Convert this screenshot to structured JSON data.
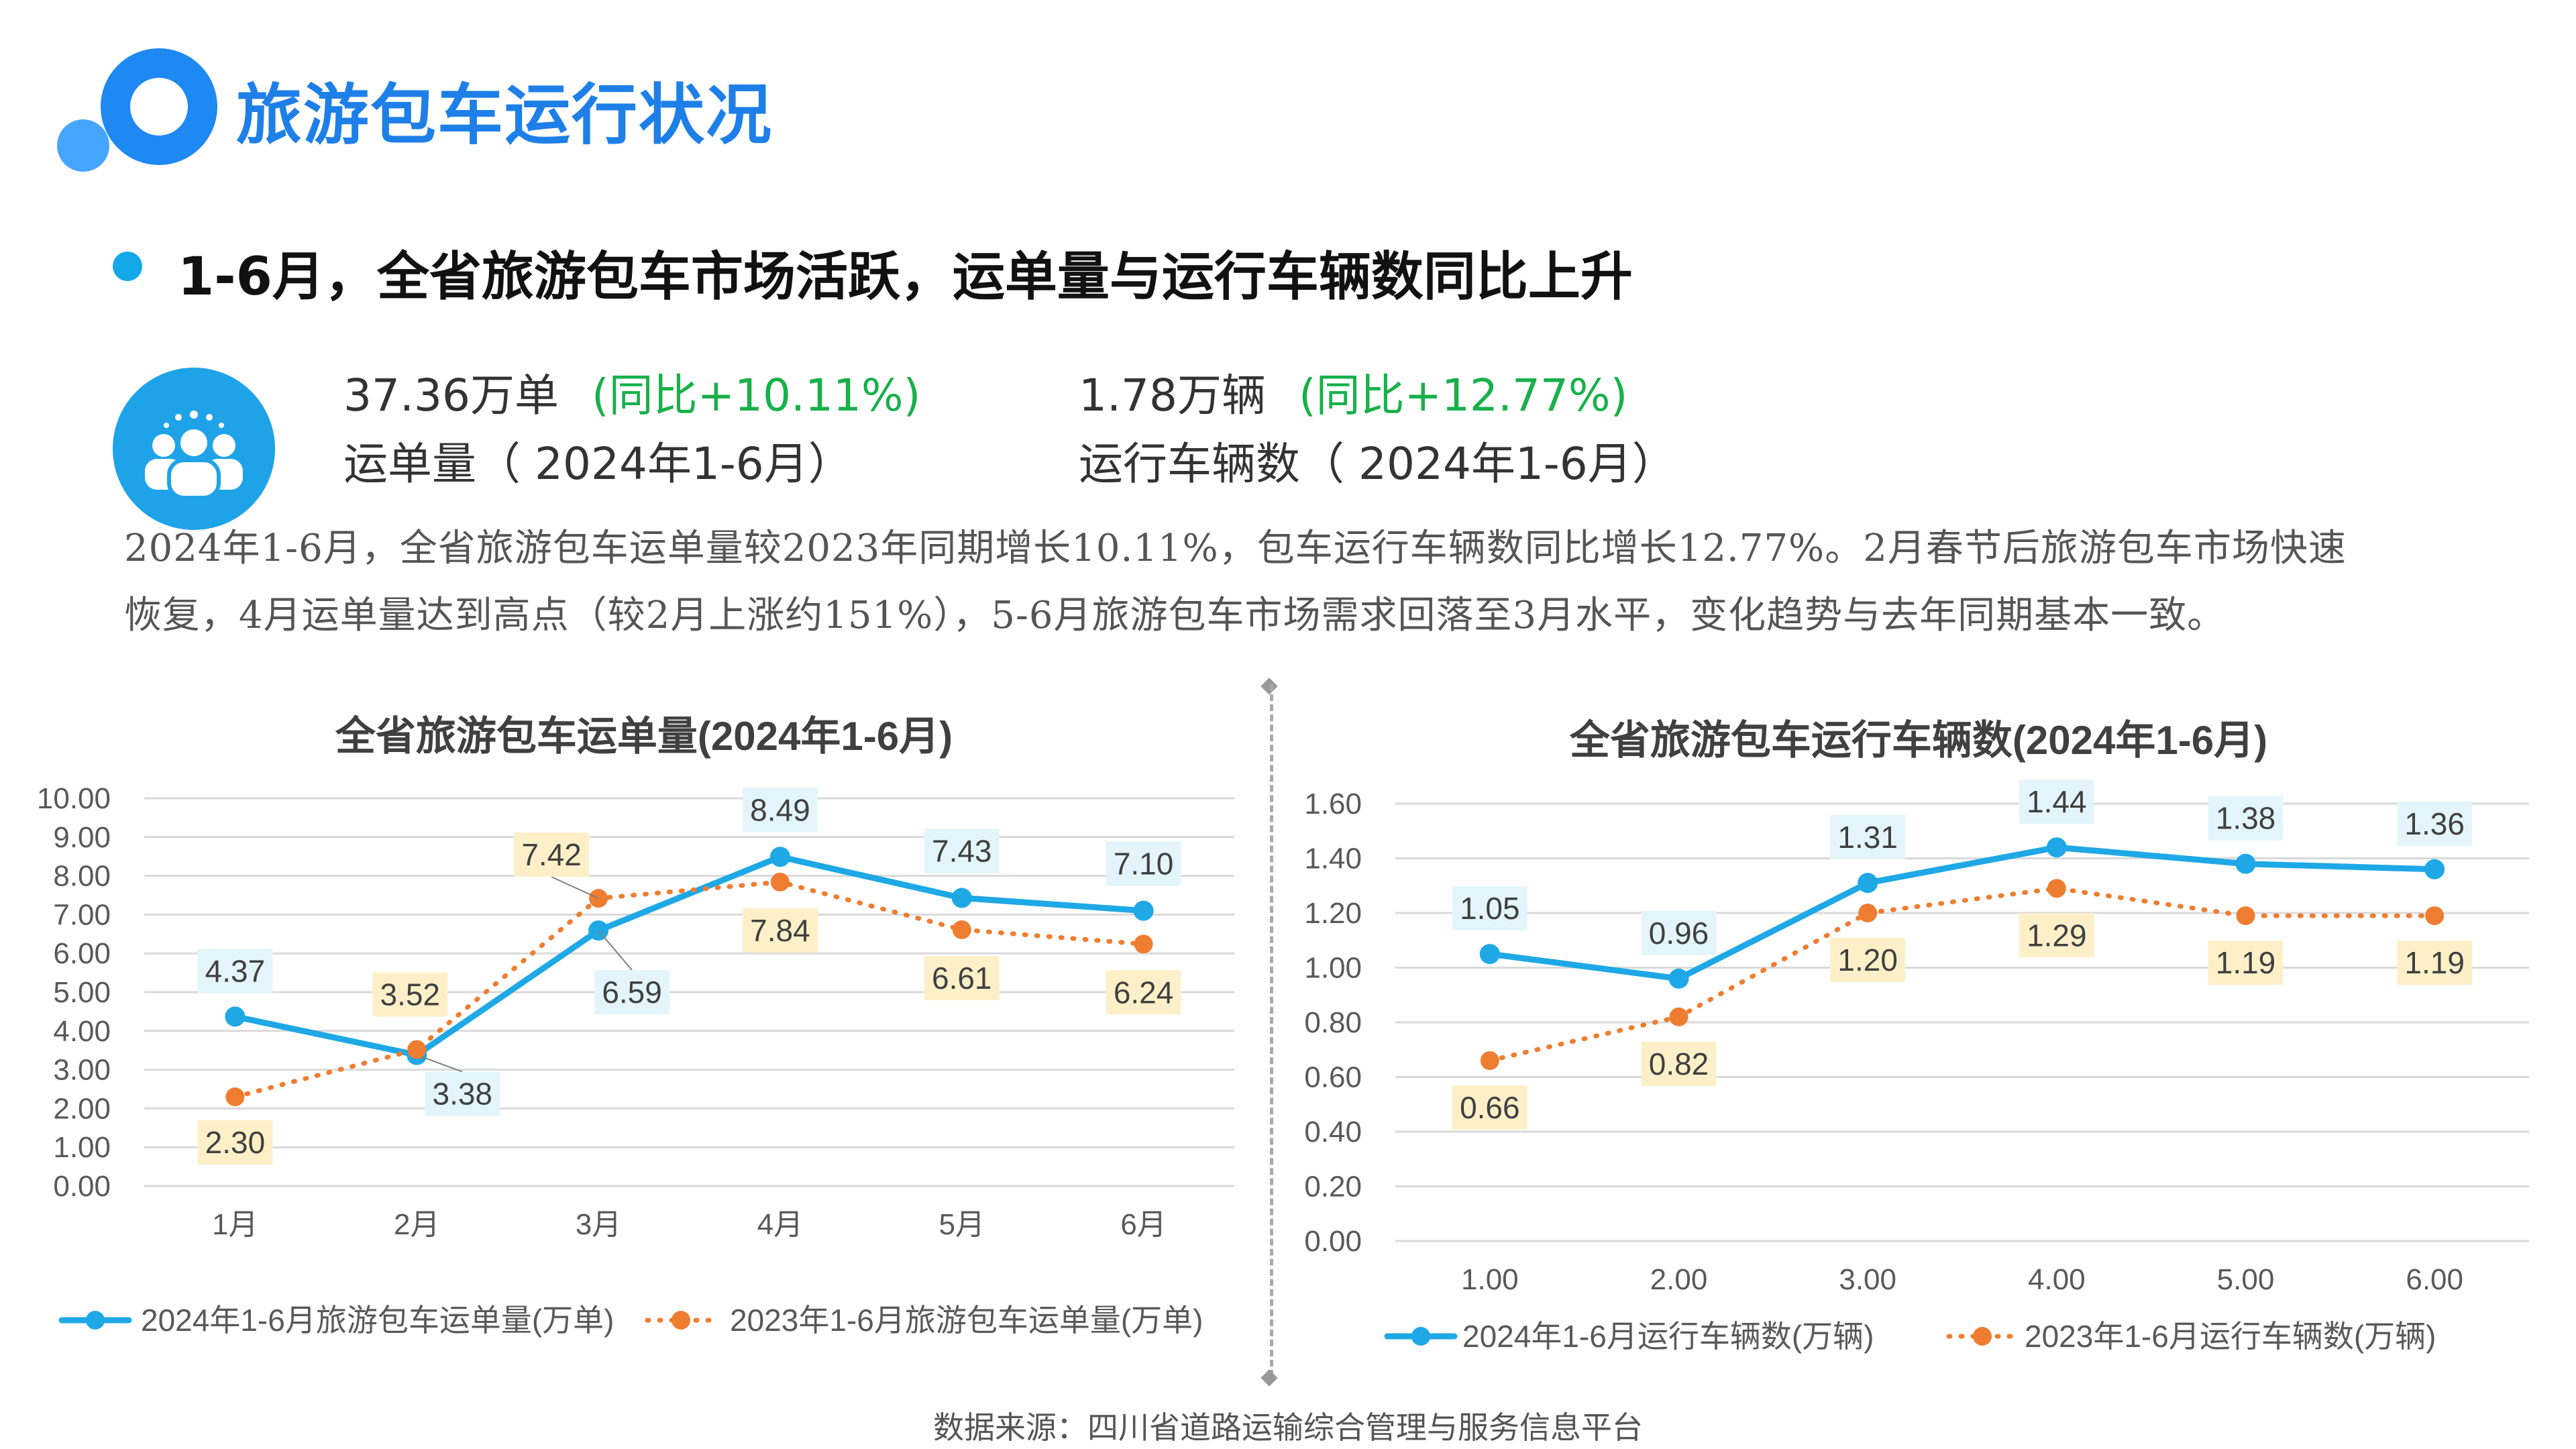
{
  "header": {
    "title": "旅游包车运行状况"
  },
  "headline": "1-6月，全省旅游包车市场活跃，运单量与运行车辆数同比上升",
  "kpis": [
    {
      "value": "37.36万单",
      "change": "(同比+10.11%)",
      "label": "运单量（ 2024年1-6月）"
    },
    {
      "value": "1.78万辆",
      "change": "(同比+12.77%)",
      "label": "运行车辆数（ 2024年1-6月）"
    }
  ],
  "description": [
    "2024年1-6月，全省旅游包车运单量较2023年同期增长10.11%，包车运行车辆数同比增长12.77%。2月春节后旅游包车市场快速",
    "恢复，4月运单量达到高点（较2月上涨约151%），5-6月旅游包车市场需求回落至3月水平，变化趋势与去年同期基本一致。"
  ],
  "source": "数据来源：四川省道路运输综合管理与服务信息平台",
  "colors": {
    "series2024": "#1ea8e6",
    "series2023": "#ee7d31",
    "label2024_bg": "#e3f5fb",
    "label2023_bg": "#fdf0c8",
    "title_blue": "#1e7fe8",
    "kpi_green": "#18b04a"
  },
  "icons": {
    "people": "people-group-icon"
  },
  "chart_data": [
    {
      "type": "line",
      "title": "全省旅游包车运单量(2024年1-6月)",
      "categories": [
        "1月",
        "2月",
        "3月",
        "4月",
        "5月",
        "6月"
      ],
      "y_ticks": [
        "0.00",
        "1.00",
        "2.00",
        "3.00",
        "4.00",
        "5.00",
        "6.00",
        "7.00",
        "8.00",
        "9.00",
        "10.00"
      ],
      "ylim": [
        0,
        10
      ],
      "grid": true,
      "legend_position": "bottom",
      "series": [
        {
          "name": "2024年1-6月旅游包车运单量(万单)",
          "values": [
            4.37,
            3.38,
            6.59,
            8.49,
            7.43,
            7.1
          ],
          "labels": [
            "4.37",
            "3.38",
            "6.59",
            "8.49",
            "7.43",
            "7.10"
          ],
          "style": "solid"
        },
        {
          "name": "2023年1-6月旅游包车运单量(万单)",
          "values": [
            2.3,
            3.52,
            7.42,
            7.84,
            6.61,
            6.24
          ],
          "labels": [
            "2.30",
            "3.52",
            "7.42",
            "7.84",
            "6.61",
            "6.24"
          ],
          "style": "dotted"
        }
      ]
    },
    {
      "type": "line",
      "title": "全省旅游包车运行车辆数(2024年1-6月)",
      "categories": [
        "1.00",
        "2.00",
        "3.00",
        "4.00",
        "5.00",
        "6.00"
      ],
      "y_ticks": [
        "0.00",
        "0.20",
        "0.40",
        "0.60",
        "0.80",
        "1.00",
        "1.20",
        "1.40",
        "1.60"
      ],
      "ylim": [
        0,
        1.6
      ],
      "grid": true,
      "legend_position": "bottom",
      "series": [
        {
          "name": "2024年1-6月运行车辆数(万辆)",
          "values": [
            1.05,
            0.96,
            1.31,
            1.44,
            1.38,
            1.36
          ],
          "labels": [
            "1.05",
            "0.96",
            "1.31",
            "1.44",
            "1.38",
            "1.36"
          ],
          "style": "solid"
        },
        {
          "name": "2023年1-6月运行车辆数(万辆)",
          "values": [
            0.66,
            0.82,
            1.2,
            1.29,
            1.19,
            1.19
          ],
          "labels": [
            "0.66",
            "0.82",
            "1.20",
            "1.29",
            "1.19",
            "1.19"
          ],
          "style": "dotted"
        }
      ]
    }
  ]
}
